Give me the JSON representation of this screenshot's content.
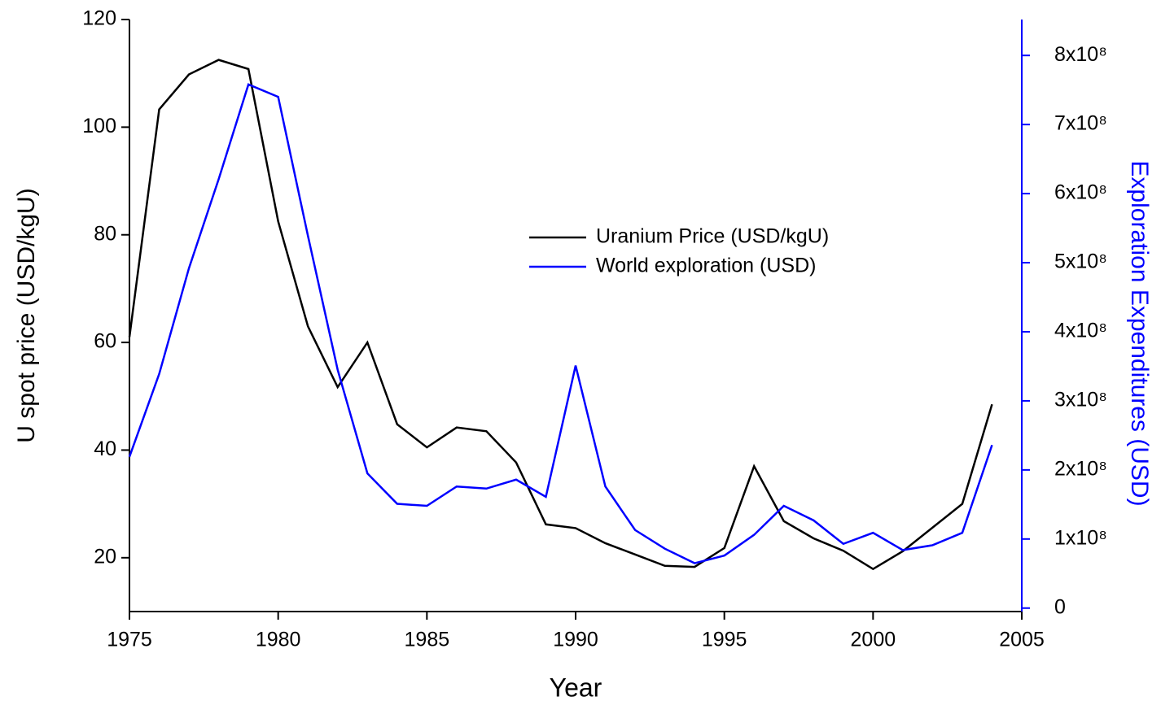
{
  "chart_data": {
    "type": "line",
    "x": [
      1975,
      1976,
      1977,
      1978,
      1979,
      1980,
      1981,
      1982,
      1983,
      1984,
      1985,
      1986,
      1987,
      1988,
      1989,
      1990,
      1991,
      1992,
      1993,
      1994,
      1995,
      1996,
      1997,
      1998,
      1999,
      2000,
      2001,
      2002,
      2003,
      2004
    ],
    "series": [
      {
        "name": "Uranium Price (USD/kgU)",
        "color": "#000000",
        "values": [
          61,
          103.3,
          109.8,
          112.5,
          110.8,
          82.5,
          63,
          51.7,
          60,
          44.8,
          40.5,
          44.2,
          43.5,
          37.7,
          26.2,
          25.5,
          22.7,
          20.6,
          18.5,
          18.3,
          21.8,
          37,
          26.8,
          23.6,
          21.3,
          17.9,
          21.2,
          25.6,
          30,
          48.5
        ]
      },
      {
        "name": "World exploration (USD)",
        "color": "#0000ff",
        "axis": "y2",
        "values": [
          219000000,
          339000000,
          492000000,
          621000000,
          758000000,
          740000000,
          539000000,
          345000000,
          195000000,
          151000000,
          148000000,
          176000000,
          173000000,
          186000000,
          161000000,
          351000000,
          176000000,
          113000000,
          86000000,
          65000000,
          76000000,
          106000000,
          148000000,
          127000000,
          93000000,
          109000000,
          84000000,
          91000000,
          109000000,
          236000000
        ]
      }
    ],
    "xlabel": "Year",
    "ylabel": "U spot price (USD/kgU)",
    "y2label": "Exploration Expenditures (USD)",
    "xlim": [
      1975,
      2005
    ],
    "xticks": [
      1975,
      1980,
      1985,
      1990,
      1995,
      2000,
      2005
    ],
    "ylim": [
      10,
      120
    ],
    "yticks": [
      20,
      40,
      60,
      80,
      100,
      120
    ],
    "y2lim": [
      -5000000,
      852000000
    ],
    "y2ticks": [
      0,
      {
        "value": 100000000,
        "label": "1x10⁸"
      },
      {
        "value": 200000000,
        "label": "2x10⁸"
      },
      {
        "value": 300000000,
        "label": "3x10⁸"
      },
      {
        "value": 400000000,
        "label": "4x10⁸"
      },
      {
        "value": 500000000,
        "label": "5x10⁸"
      },
      {
        "value": 600000000,
        "label": "6x10⁸"
      },
      {
        "value": 700000000,
        "label": "7x10⁸"
      },
      {
        "value": 800000000,
        "label": "8x10⁸"
      }
    ],
    "legend": "center"
  }
}
